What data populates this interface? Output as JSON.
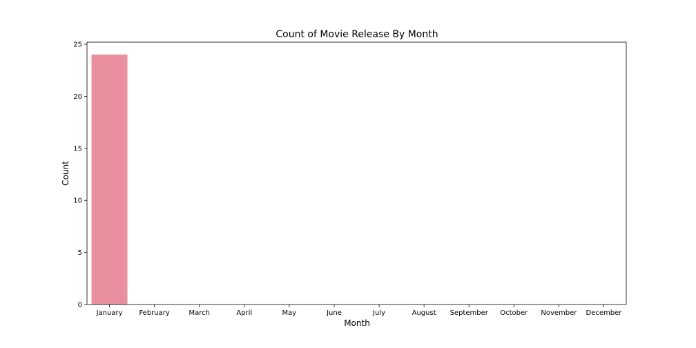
{
  "chart_data": {
    "type": "bar",
    "title": "Count of Movie Release By Month",
    "xlabel": "Month",
    "ylabel": "Count",
    "categories": [
      "January",
      "February",
      "March",
      "April",
      "May",
      "June",
      "July",
      "August",
      "September",
      "October",
      "November",
      "December"
    ],
    "values": [
      24,
      0,
      0,
      0,
      0,
      0,
      0,
      0,
      0,
      0,
      0,
      0
    ],
    "ylim": [
      0,
      25.2
    ],
    "yticks": [
      0,
      5,
      10,
      15,
      20,
      25
    ],
    "grid": false,
    "colors": [
      "#e9909e"
    ]
  }
}
